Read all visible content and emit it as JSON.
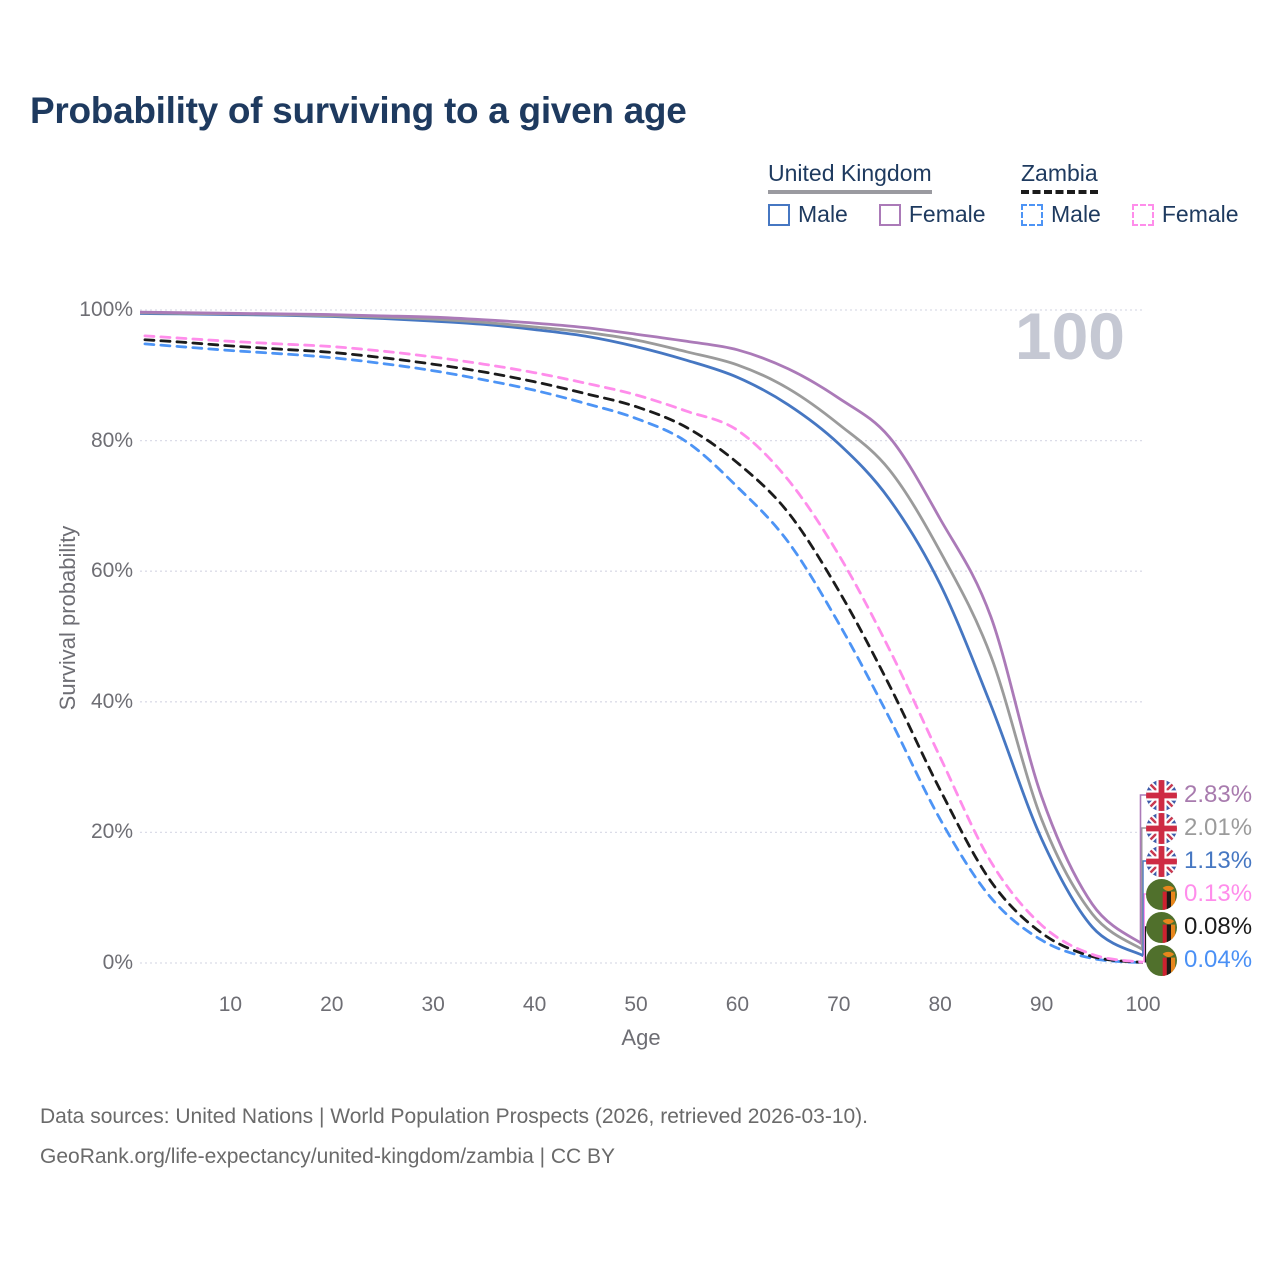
{
  "title": "Probability of surviving to a given age",
  "legend": {
    "groups": [
      {
        "label": "United Kingdom",
        "line_style": "solid",
        "underline_color": "#9A9AA0",
        "items": [
          {
            "label": "Male",
            "color": "#4677C2",
            "dashed": false
          },
          {
            "label": "Female",
            "color": "#AB7AB8",
            "dashed": false
          }
        ]
      },
      {
        "label": "Zambia",
        "line_style": "dashed",
        "underline_color": "#1B1B1B",
        "items": [
          {
            "label": "Male",
            "color": "#4D94F5",
            "dashed": true
          },
          {
            "label": "Female",
            "color": "#FF8DEB",
            "dashed": true
          }
        ]
      }
    ]
  },
  "chart_data": {
    "type": "line",
    "title": "Probability of surviving to a given age",
    "xlabel": "Age",
    "ylabel": "Survival probability",
    "xlim": [
      0,
      100
    ],
    "ylim": [
      0,
      100
    ],
    "x_ticks": [
      10,
      20,
      30,
      40,
      50,
      60,
      70,
      80,
      90,
      100
    ],
    "y_ticks": [
      0,
      20,
      40,
      60,
      80,
      100
    ],
    "y_tick_suffix": "%",
    "grid": true,
    "legend_position": "top-right",
    "age_marker": "100",
    "x": [
      0,
      5,
      10,
      15,
      20,
      25,
      30,
      35,
      40,
      45,
      50,
      55,
      60,
      65,
      70,
      75,
      80,
      85,
      90,
      95,
      100
    ],
    "series": [
      {
        "name": "United Kingdom Female",
        "country": "uk",
        "sex": "female",
        "color": "#AB7AB8",
        "label_color": "#A87BAE",
        "dashed": false,
        "end_label": "2.83%",
        "values": [
          99.7,
          99.6,
          99.5,
          99.4,
          99.3,
          99.1,
          98.9,
          98.5,
          98.0,
          97.3,
          96.3,
          95.2,
          93.9,
          91.0,
          86.5,
          80.5,
          68.0,
          53.0,
          25.5,
          9.0,
          2.83
        ]
      },
      {
        "name": "United Kingdom Total",
        "country": "uk",
        "sex": "total",
        "color": "#9B9B9B",
        "label_color": "#9B9B9B",
        "dashed": false,
        "end_label": "2.01%",
        "values": [
          99.6,
          99.5,
          99.4,
          99.3,
          99.1,
          98.9,
          98.6,
          98.1,
          97.4,
          96.6,
          95.4,
          93.6,
          91.6,
          88.0,
          82.5,
          75.5,
          63.0,
          47.0,
          22.0,
          7.5,
          2.01
        ]
      },
      {
        "name": "United Kingdom Male",
        "country": "uk",
        "sex": "male",
        "color": "#4677C2",
        "label_color": "#4677C2",
        "dashed": false,
        "end_label": "1.13%",
        "values": [
          99.5,
          99.4,
          99.3,
          99.2,
          99.0,
          98.7,
          98.3,
          97.8,
          97.0,
          96.0,
          94.4,
          92.3,
          89.7,
          85.5,
          79.5,
          71.0,
          58.0,
          39.5,
          19.0,
          5.5,
          1.13
        ]
      },
      {
        "name": "Zambia Female",
        "country": "zambia",
        "sex": "female",
        "color": "#FF8DEB",
        "label_color": "#FF8DEB",
        "dashed": true,
        "end_label": "0.13%",
        "values": [
          96.2,
          95.7,
          95.2,
          94.8,
          94.4,
          93.7,
          92.8,
          91.7,
          90.4,
          88.8,
          87.0,
          84.5,
          81.6,
          74.0,
          62.5,
          48.0,
          31.5,
          15.5,
          5.8,
          1.3,
          0.13
        ]
      },
      {
        "name": "Zambia Total",
        "country": "zambia",
        "sex": "total",
        "color": "#1B1B1B",
        "label_color": "#1B1B1B",
        "dashed": true,
        "end_label": "0.08%",
        "values": [
          95.6,
          95.1,
          94.5,
          94.0,
          93.5,
          92.7,
          91.7,
          90.5,
          89.0,
          87.2,
          85.2,
          82.0,
          76.6,
          69.0,
          57.0,
          42.5,
          26.5,
          12.5,
          4.6,
          1.0,
          0.08
        ]
      },
      {
        "name": "Zambia Male",
        "country": "zambia",
        "sex": "male",
        "color": "#4D94F5",
        "label_color": "#4A90F5",
        "dashed": true,
        "end_label": "0.04%",
        "values": [
          95.0,
          94.4,
          93.8,
          93.3,
          92.7,
          91.8,
          90.7,
          89.3,
          87.7,
          85.7,
          83.4,
          79.8,
          72.9,
          64.5,
          52.0,
          37.5,
          22.0,
          10.0,
          3.5,
          0.7,
          0.04
        ]
      }
    ]
  },
  "flags": {
    "uk": {
      "blue": "#3E5BA9",
      "red_cross": "#CE2B44",
      "red_diag": "#C93A50",
      "white": "#FFFFFF"
    },
    "zambia": {
      "green": "#50702C",
      "red": "#CE2130",
      "black": "#1D1A17",
      "orange": "#E8861C"
    }
  },
  "grid_color": "#DBDCE8",
  "footer": {
    "line1": "Data sources: United Nations | World Population Prospects (2026, retrieved 2026-03-10).",
    "line2": "GeoRank.org/life-expectancy/united-kingdom/zambia | CC BY"
  }
}
